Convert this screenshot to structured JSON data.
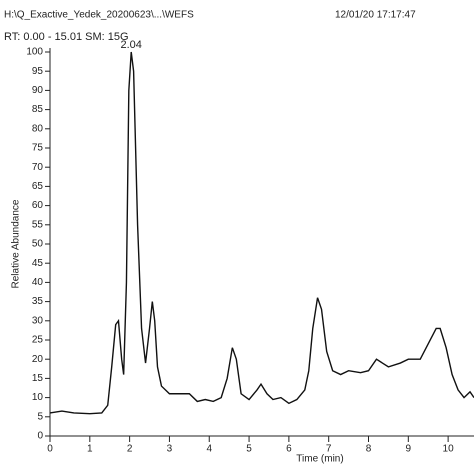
{
  "chart_data": {
    "type": "line",
    "title": "H:\\Q_Exactive_Yedek_20200623\\...\\WEFS",
    "timestamp": "12/01/20 17:17:47",
    "subtitle": "RT: 0.00 - 15.01 SM: 15G",
    "annotation": "2.04",
    "x_label": "Time (min)",
    "y_label": "Relative Abundance",
    "x": [
      0,
      0.3,
      0.6,
      1.0,
      1.3,
      1.45,
      1.55,
      1.65,
      1.72,
      1.8,
      1.85,
      1.92,
      1.98,
      2.04,
      2.1,
      2.2,
      2.3,
      2.4,
      2.5,
      2.57,
      2.63,
      2.7,
      2.8,
      3.0,
      3.3,
      3.5,
      3.7,
      3.9,
      4.1,
      4.3,
      4.45,
      4.58,
      4.68,
      4.8,
      5.0,
      5.2,
      5.3,
      5.45,
      5.6,
      5.8,
      6.0,
      6.2,
      6.4,
      6.5,
      6.6,
      6.72,
      6.82,
      6.95,
      7.1,
      7.3,
      7.5,
      7.8,
      8.0,
      8.2,
      8.35,
      8.5,
      8.8,
      9.0,
      9.3,
      9.5,
      9.7,
      9.8,
      9.95,
      10.1,
      10.25,
      10.4,
      10.55,
      10.65
    ],
    "series": [
      {
        "color": "#111111",
        "values": [
          6,
          6.5,
          6,
          5.8,
          6,
          8,
          18,
          29,
          30,
          20,
          16,
          40,
          90,
          100,
          95,
          55,
          28,
          19,
          28,
          35,
          30,
          18,
          13,
          11,
          11,
          11,
          9,
          9.5,
          9,
          10,
          15,
          23,
          20,
          11,
          9.5,
          12,
          13.5,
          11,
          9.5,
          10,
          8.5,
          9.5,
          12,
          17,
          28,
          36,
          33,
          22,
          17,
          16,
          17,
          16.5,
          17,
          20,
          19,
          18,
          19,
          20,
          20,
          24,
          28,
          28,
          23,
          16,
          12,
          10,
          11.5,
          10
        ]
      }
    ],
    "xlim": [
      0,
      10.65
    ],
    "xticks": [
      0,
      1,
      2,
      3,
      4,
      5,
      6,
      7,
      8,
      9,
      10
    ],
    "ylim": [
      0,
      100
    ],
    "yticks": [
      0,
      5,
      10,
      15,
      20,
      25,
      30,
      35,
      40,
      45,
      50,
      55,
      60,
      65,
      70,
      75,
      80,
      85,
      90,
      95,
      100
    ]
  }
}
